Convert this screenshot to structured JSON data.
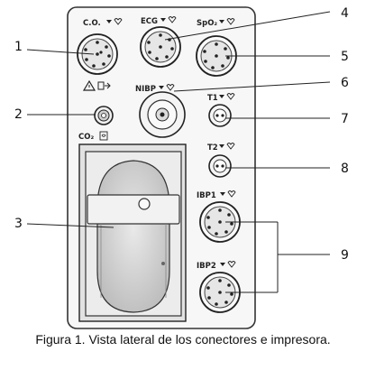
{
  "panel_labels": {
    "co": "C.O.",
    "ecg": "ECG",
    "spo2": "SpO₂",
    "nibp": "NIBP",
    "co2": "CO₂",
    "t1": "T1",
    "t2": "T2",
    "ibp1": "IBP1",
    "ibp2": "IBP2"
  },
  "callouts": {
    "n1": "1",
    "n2": "2",
    "n3": "3",
    "n4": "4",
    "n5": "5",
    "n6": "6",
    "n7": "7",
    "n8": "8",
    "n9": "9"
  },
  "caption": "Figura 1. Vista lateral de los conectores e impresora."
}
